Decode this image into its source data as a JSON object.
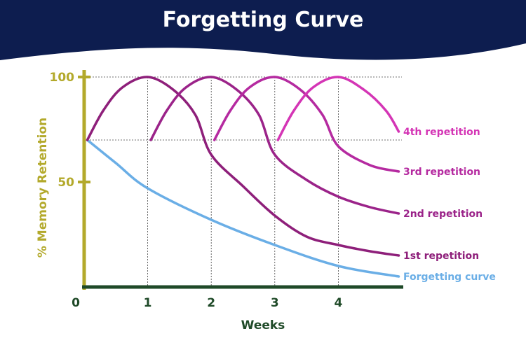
{
  "chart_data": {
    "type": "line",
    "title": "Forgetting Curve",
    "xlabel": "Weeks",
    "ylabel": "% Memory Retention",
    "x_ticks": [
      "0",
      "1",
      "2",
      "3",
      "4"
    ],
    "y_ticks": [
      "50",
      "100"
    ],
    "xlim": [
      0,
      5
    ],
    "ylim": [
      0,
      100
    ],
    "grid": "dotted guides at y=70, y=100 and at x=1,2,3,4",
    "series": [
      {
        "name": "Forgetting curve",
        "color": "#6aaee6",
        "points": [
          [
            0.05,
            70
          ],
          [
            0.5,
            59
          ],
          [
            1,
            47
          ],
          [
            2,
            32
          ],
          [
            3,
            20
          ],
          [
            4,
            10
          ],
          [
            4.95,
            5
          ]
        ]
      },
      {
        "name": "1st repetition",
        "color": "#8e1f7a",
        "points": [
          [
            0.05,
            70
          ],
          [
            0.3,
            84
          ],
          [
            0.6,
            95
          ],
          [
            1,
            100
          ],
          [
            1.4,
            94
          ],
          [
            1.75,
            82
          ],
          [
            2,
            63
          ],
          [
            2.5,
            48
          ],
          [
            3,
            34
          ],
          [
            3.5,
            24
          ],
          [
            4,
            20
          ],
          [
            4.5,
            17
          ],
          [
            4.95,
            15
          ]
        ]
      },
      {
        "name": "2nd repetition",
        "color": "#9b2389",
        "points": [
          [
            1.05,
            70
          ],
          [
            1.3,
            84
          ],
          [
            1.6,
            95
          ],
          [
            2,
            100
          ],
          [
            2.4,
            94
          ],
          [
            2.75,
            82
          ],
          [
            3,
            63
          ],
          [
            3.5,
            51
          ],
          [
            4,
            43
          ],
          [
            4.5,
            38
          ],
          [
            4.95,
            35
          ]
        ]
      },
      {
        "name": "3rd repetition",
        "color": "#b52aa0",
        "points": [
          [
            2.05,
            70
          ],
          [
            2.3,
            84
          ],
          [
            2.6,
            95
          ],
          [
            3,
            100
          ],
          [
            3.4,
            94
          ],
          [
            3.75,
            82
          ],
          [
            4,
            67
          ],
          [
            4.5,
            58
          ],
          [
            4.95,
            55
          ]
        ]
      },
      {
        "name": "4th repetition",
        "color": "#d435b5",
        "points": [
          [
            3.05,
            70
          ],
          [
            3.3,
            84
          ],
          [
            3.6,
            95
          ],
          [
            4,
            100
          ],
          [
            4.4,
            94
          ],
          [
            4.75,
            84
          ],
          [
            4.95,
            74
          ]
        ]
      }
    ]
  },
  "colors": {
    "header": "#0d1d4f",
    "y_axis": "#b3a92b",
    "x_axis": "#1f4a28",
    "guide": "#444444"
  }
}
